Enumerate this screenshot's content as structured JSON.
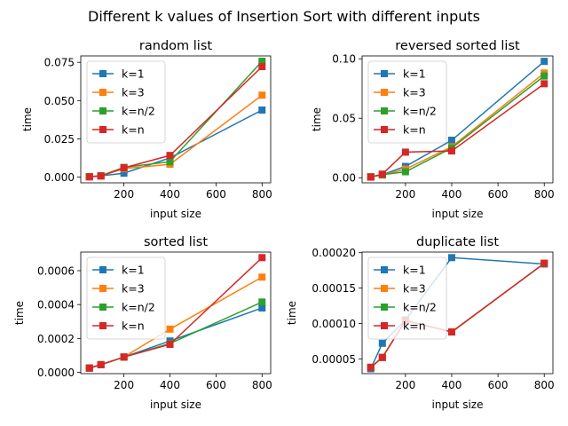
{
  "figure_title": "Different k values of Insertion Sort with different inputs",
  "colors": {
    "k=1": "#1f77b4",
    "k=3": "#ff7f0e",
    "k=n/2": "#2ca02c",
    "k=n": "#d62728"
  },
  "chart_data": [
    {
      "type": "line",
      "title": "random list",
      "xlabel": "input size",
      "ylabel": "time",
      "x": [
        50,
        100,
        200,
        400,
        800
      ],
      "xlim": [
        12.5,
        837.5
      ],
      "ylim": [
        -0.0038,
        0.0792
      ],
      "xticks": [
        200,
        400,
        600,
        800
      ],
      "xtick_labels": [
        "200",
        "400",
        "600",
        "800"
      ],
      "yticks": [
        0.0,
        0.025,
        0.05,
        0.075
      ],
      "ytick_labels": [
        "0.000",
        "0.025",
        "0.050",
        "0.075"
      ],
      "legend": "top-left",
      "series": [
        {
          "name": "k=1",
          "values": [
            0.0003,
            0.0008,
            0.0025,
            0.0125,
            0.0438
          ]
        },
        {
          "name": "k=3",
          "values": [
            0.0002,
            0.0007,
            0.0055,
            0.0083,
            0.0535
          ]
        },
        {
          "name": "k=n/2",
          "values": [
            0.0002,
            0.0008,
            0.0063,
            0.01,
            0.0757
          ]
        },
        {
          "name": "k=n",
          "values": [
            0.0001,
            0.0007,
            0.006,
            0.0141,
            0.0722
          ]
        }
      ]
    },
    {
      "type": "line",
      "title": "reversed sorted list",
      "xlabel": "input size",
      "ylabel": "time",
      "x": [
        50,
        100,
        200,
        400,
        800
      ],
      "xlim": [
        12.5,
        837.5
      ],
      "ylim": [
        -0.0043,
        0.1024
      ],
      "xticks": [
        200,
        400,
        600,
        800
      ],
      "xtick_labels": [
        "200",
        "400",
        "600",
        "800"
      ],
      "yticks": [
        0.0,
        0.05,
        0.1
      ],
      "ytick_labels": [
        "0.00",
        "0.05",
        "0.10"
      ],
      "legend": "top-left",
      "series": [
        {
          "name": "k=1",
          "values": [
            0.0009,
            0.0025,
            0.0095,
            0.0315,
            0.0978
          ]
        },
        {
          "name": "k=3",
          "values": [
            0.0008,
            0.0022,
            0.0072,
            0.026,
            0.088
          ]
        },
        {
          "name": "k=n/2",
          "values": [
            0.0008,
            0.0025,
            0.005,
            0.025,
            0.0855
          ]
        },
        {
          "name": "k=n",
          "values": [
            0.0005,
            0.003,
            0.0215,
            0.0225,
            0.079
          ]
        }
      ]
    },
    {
      "type": "line",
      "title": "sorted list",
      "xlabel": "input size",
      "ylabel": "time",
      "x": [
        50,
        100,
        200,
        400,
        800
      ],
      "xlim": [
        12.5,
        837.5
      ],
      "ylim": [
        -7.9e-06,
        0.00071
      ],
      "xticks": [
        200,
        400,
        600,
        800
      ],
      "xtick_labels": [
        "200",
        "400",
        "600",
        "800"
      ],
      "yticks": [
        0.0,
        0.0002,
        0.0004,
        0.0006
      ],
      "ytick_labels": [
        "0.0000",
        "0.0002",
        "0.0004",
        "0.0006"
      ],
      "legend": "top-left",
      "series": [
        {
          "name": "k=1",
          "values": [
            2.5e-05,
            4.5e-05,
            9e-05,
            0.000185,
            0.00038
          ]
        },
        {
          "name": "k=3",
          "values": [
            2.5e-05,
            4.5e-05,
            9e-05,
            0.000255,
            0.000562
          ]
        },
        {
          "name": "k=n/2",
          "values": [
            2.5e-05,
            4.5e-05,
            9e-05,
            0.00017,
            0.000415
          ]
        },
        {
          "name": "k=n",
          "values": [
            2.5e-05,
            4.5e-05,
            9e-05,
            0.000165,
            0.000677
          ]
        }
      ]
    },
    {
      "type": "line",
      "title": "duplicate list",
      "xlabel": "input size",
      "ylabel": "time",
      "x": [
        50,
        100,
        200,
        400,
        800
      ],
      "xlim": [
        12.5,
        837.5
      ],
      "ylim": [
        2.91e-05,
        0.0002009
      ],
      "xticks": [
        200,
        400,
        600,
        800
      ],
      "xtick_labels": [
        "200",
        "400",
        "600",
        "800"
      ],
      "yticks": [
        5e-05,
        0.0001,
        0.00015,
        0.0002
      ],
      "ytick_labels": [
        "0.00005",
        "0.00010",
        "0.00015",
        "0.00020"
      ],
      "legend": "top-left",
      "series": [
        {
          "name": "k=1",
          "values": [
            3.6e-05,
            7.2e-05,
            0.000105,
            0.000193,
            0.000184
          ]
        },
        {
          "name": "k=3",
          "values": [
            3.8e-05,
            5.2e-05,
            0.000104,
            8.8e-05,
            0.000185
          ]
        },
        {
          "name": "k=n/2",
          "values": [
            3.8e-05,
            5.2e-05,
            0.000104,
            8.8e-05,
            0.000185
          ]
        },
        {
          "name": "k=n",
          "values": [
            3.8e-05,
            5.2e-05,
            0.000104,
            8.8e-05,
            0.000185
          ]
        }
      ]
    }
  ]
}
